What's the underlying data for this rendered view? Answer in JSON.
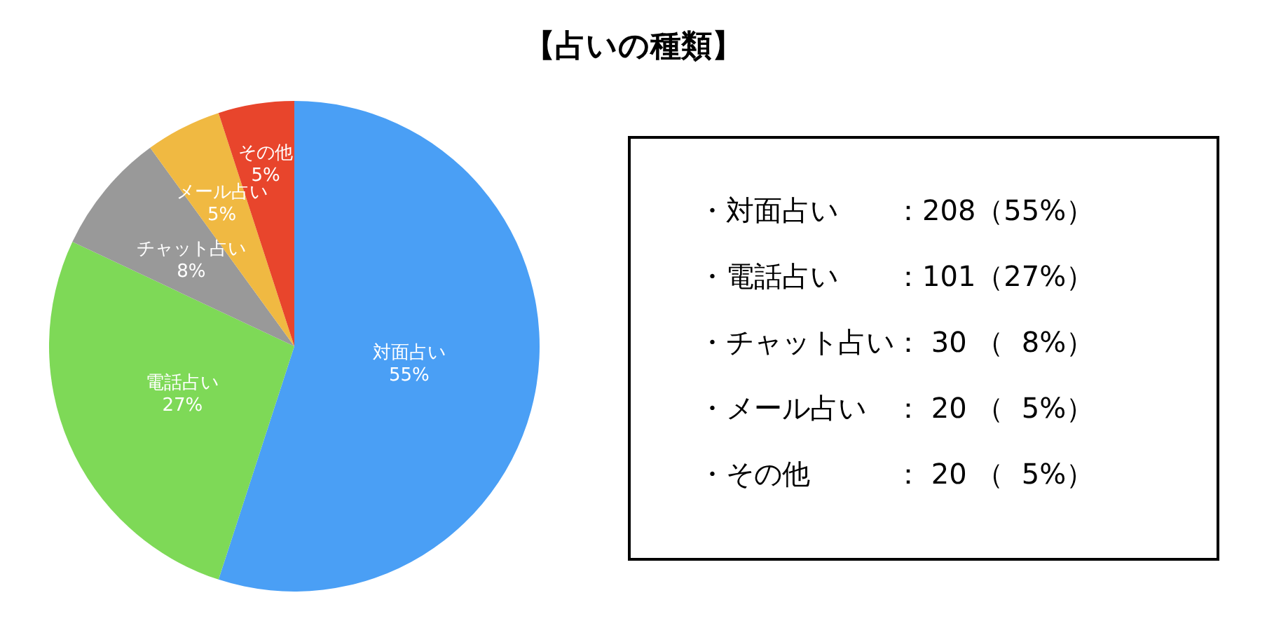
{
  "chart_data": {
    "type": "pie",
    "title": "【占いの種類】",
    "categories": [
      "対面占い",
      "電話占い",
      "チャット占い",
      "メール占い",
      "その他"
    ],
    "values": [
      55,
      27,
      8,
      5,
      5
    ],
    "value_labels": [
      "55%",
      "27%",
      "8%",
      "5%",
      "5%"
    ],
    "colors": [
      "#4a9ff5",
      "#7ed957",
      "#999999",
      "#f0b942",
      "#e8452c"
    ],
    "legend": false,
    "annotations": [
      "・対面占い　　：208（55%）",
      "・電話占い　　：101（27%）",
      "・チャット占い： 30 （  8%）",
      "・メール占い　： 20 （  5%）",
      "・その他　　　： 20 （  5%）"
    ]
  }
}
